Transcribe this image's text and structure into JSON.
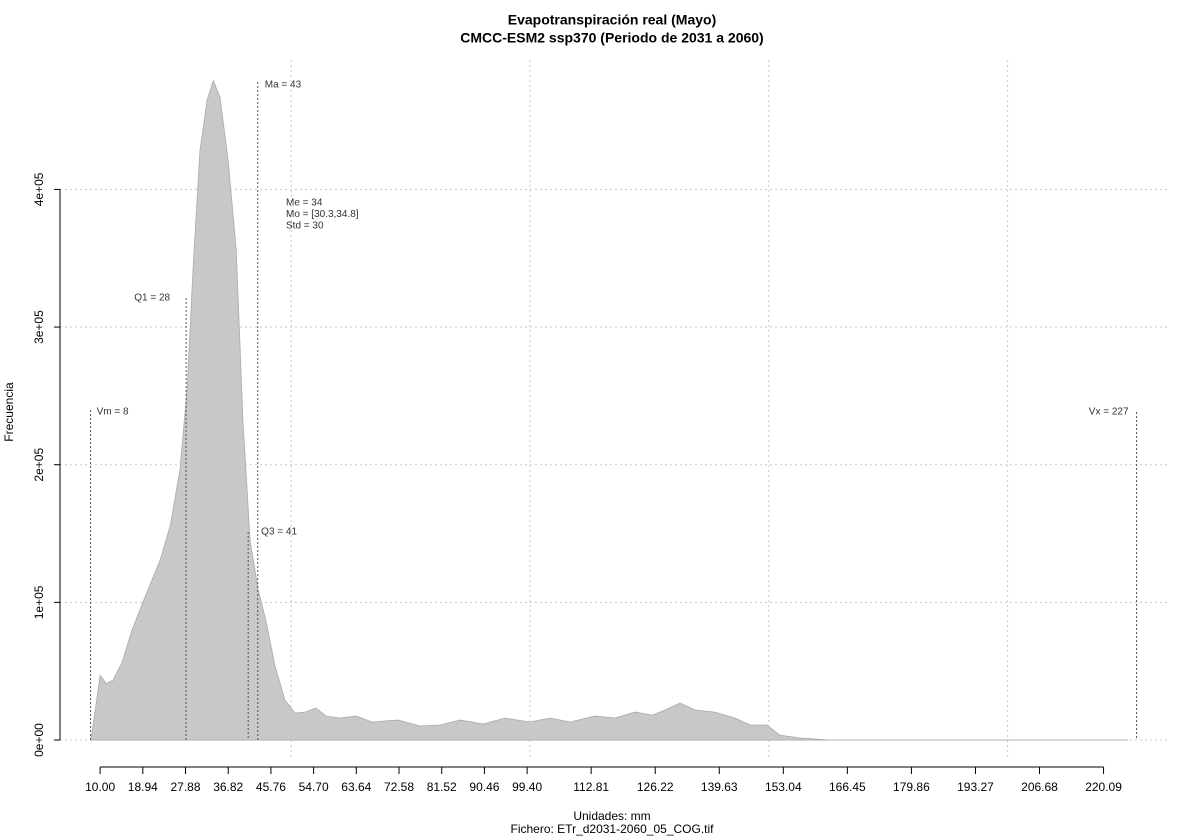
{
  "chart_data": {
    "type": "area",
    "title": "Evapotranspiración real (Mayo)",
    "subtitle": "CMCC-ESM2 ssp370 (Periodo de 2031 a 2060)",
    "x_label": "Unidades: mm",
    "file_label": "Fichero: ETr_d2031-2060_05_COG.tif",
    "y_label": "Frecuencia",
    "color": "#c8c8c8",
    "grid": true,
    "xlim": [
      1.6,
      234
    ],
    "ylim": [
      -14500,
      494000
    ],
    "xticks": [
      {
        "value": 10,
        "label": "10.00"
      },
      {
        "value": 18.94,
        "label": "18.94"
      },
      {
        "value": 27.88,
        "label": "27.88"
      },
      {
        "value": 36.82,
        "label": "36.82"
      },
      {
        "value": 45.76,
        "label": "45.76"
      },
      {
        "value": 54.7,
        "label": "54.70"
      },
      {
        "value": 63.64,
        "label": "63.64"
      },
      {
        "value": 72.58,
        "label": "72.58"
      },
      {
        "value": 81.52,
        "label": "81.52"
      },
      {
        "value": 90.46,
        "label": "90.46"
      },
      {
        "value": 99.4,
        "label": "99.40"
      },
      {
        "value": 112.81,
        "label": "112.81"
      },
      {
        "value": 126.22,
        "label": "126.22"
      },
      {
        "value": 139.63,
        "label": "139.63"
      },
      {
        "value": 153.04,
        "label": "153.04"
      },
      {
        "value": 166.45,
        "label": "166.45"
      },
      {
        "value": 179.86,
        "label": "179.86"
      },
      {
        "value": 193.27,
        "label": "193.27"
      },
      {
        "value": 206.68,
        "label": "206.68"
      },
      {
        "value": 220.09,
        "label": "220.09"
      }
    ],
    "xgrid": [
      50,
      100,
      150,
      200
    ],
    "yticks": [
      {
        "value": 0,
        "label": "0e+00"
      },
      {
        "value": 100000,
        "label": "1e+05"
      },
      {
        "value": 200000,
        "label": "2e+05"
      },
      {
        "value": 300000,
        "label": "3e+05"
      },
      {
        "value": 400000,
        "label": "4e+05"
      }
    ],
    "x": [
      8.1,
      10,
      11.3,
      12.7,
      14.6,
      16.7,
      19.4,
      22.6,
      24.7,
      26.7,
      28.2,
      29.5,
      30.9,
      32.4,
      33.7,
      35.1,
      36.8,
      38.5,
      39.9,
      41.4,
      43.1,
      44.7,
      46.6,
      48.7,
      50.8,
      52.9,
      55.2,
      57.3,
      60.2,
      63.6,
      66.9,
      72.4,
      77,
      81.2,
      85.4,
      90.2,
      94.8,
      100,
      104.2,
      108.4,
      113.6,
      117.8,
      122,
      125.6,
      128.3,
      131.4,
      134.6,
      138.7,
      142.9,
      146.1,
      149.6,
      152.3,
      156.5,
      162.8,
      225.2
    ],
    "values": [
      0,
      47000,
      41000,
      43500,
      56600,
      80000,
      104000,
      131000,
      156000,
      196000,
      254000,
      345000,
      428000,
      465000,
      479000,
      467000,
      421000,
      356000,
      232000,
      145000,
      109000,
      87000,
      54000,
      29000,
      19600,
      20300,
      23200,
      17400,
      16000,
      17400,
      13100,
      14500,
      10200,
      10900,
      14500,
      11600,
      16000,
      13100,
      16000,
      13100,
      17400,
      16000,
      20300,
      18100,
      21800,
      26900,
      21800,
      20300,
      16000,
      10900,
      10900,
      3600,
      1500,
      0,
      0
    ],
    "annotations": [
      {
        "label": "Vm = 8",
        "x": 8
      },
      {
        "label": "Q1 = 28",
        "x": 28
      },
      {
        "label": "Q3 = 41",
        "x": 41
      },
      {
        "label": "Ma = 43",
        "x": 43
      },
      {
        "label": "Vx = 227",
        "x": 227
      }
    ],
    "stats": [
      "Me = 34",
      "Mo = [30.3,34.8]",
      "Std = 30"
    ]
  }
}
